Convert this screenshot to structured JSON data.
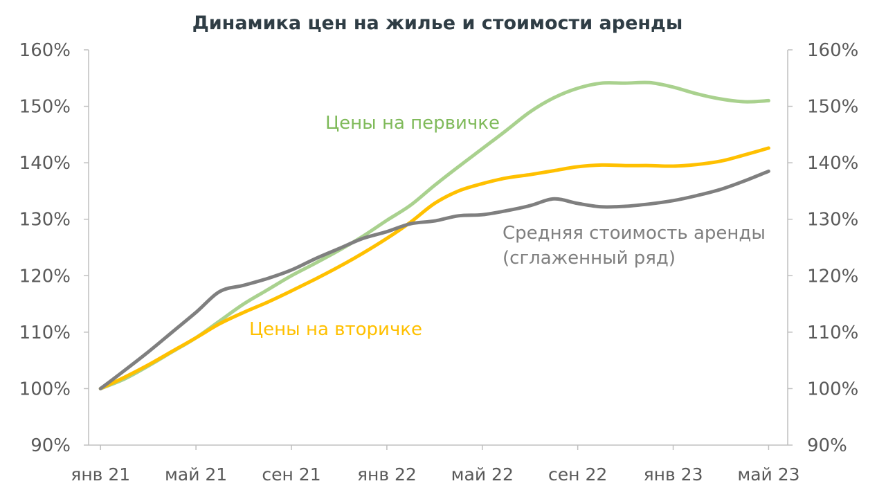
{
  "chart_data": {
    "type": "line",
    "title": "Динамика цен на жилье и стоимости аренды",
    "x_tick_labels": [
      "янв 21",
      "май 21",
      "сен 21",
      "янв 22",
      "май 22",
      "сен 22",
      "янв 23",
      "май 23"
    ],
    "x_tick_month_index": [
      0,
      4,
      8,
      12,
      16,
      20,
      24,
      28
    ],
    "x_range": [
      -0.5,
      28.8
    ],
    "y_tick_labels": [
      "90%",
      "100%",
      "110%",
      "120%",
      "130%",
      "140%",
      "150%",
      "160%"
    ],
    "y_tick_values": [
      90,
      100,
      110,
      120,
      130,
      140,
      150,
      160
    ],
    "ylim": [
      90,
      160
    ],
    "series": [
      {
        "name": "Цены на первичке",
        "color": "#a9d18e",
        "x": [
          0,
          1,
          2,
          3,
          4,
          5,
          6,
          7,
          8,
          9,
          10,
          11,
          12,
          13,
          14,
          15,
          16,
          17,
          18,
          19,
          20,
          21,
          22,
          23,
          24,
          25,
          26,
          27,
          28
        ],
        "values": [
          100,
          101.7,
          104,
          106.5,
          109,
          112,
          115,
          117.5,
          120,
          122.2,
          124.5,
          127,
          129.8,
          132.5,
          136,
          139.3,
          142.5,
          145.7,
          149,
          151.5,
          153.2,
          154.1,
          154.1,
          154.2,
          153.4,
          152.2,
          151.3,
          150.8,
          151
        ]
      },
      {
        "name": "Цены на вторичке",
        "color": "#ffc000",
        "x": [
          0,
          1,
          2,
          3,
          4,
          5,
          6,
          7,
          8,
          9,
          10,
          11,
          12,
          13,
          14,
          15,
          16,
          17,
          18,
          19,
          20,
          21,
          22,
          23,
          24,
          25,
          26,
          27,
          28
        ],
        "values": [
          100,
          102,
          104.2,
          106.6,
          109,
          111.5,
          113.5,
          115.3,
          117.3,
          119.4,
          121.6,
          124,
          126.6,
          129.5,
          132.8,
          135,
          136.3,
          137.3,
          137.9,
          138.6,
          139.3,
          139.6,
          139.5,
          139.5,
          139.4,
          139.7,
          140.3,
          141.4,
          142.6
        ]
      },
      {
        "name": "Средняя стоимость аренды (сглаженный ряд)",
        "color": "#7f7f7f",
        "x": [
          0,
          1,
          2,
          3,
          4,
          5,
          6,
          7,
          8,
          9,
          10,
          11,
          12,
          13,
          14,
          15,
          16,
          17,
          18,
          19,
          20,
          21,
          22,
          23,
          24,
          25,
          26,
          27,
          28
        ],
        "values": [
          100,
          103.2,
          106.5,
          110,
          113.5,
          117.2,
          118.3,
          119.5,
          121,
          123,
          124.8,
          126.6,
          127.8,
          129.2,
          129.7,
          130.6,
          130.8,
          131.5,
          132.4,
          133.6,
          132.8,
          132.2,
          132.3,
          132.7,
          133.3,
          134.2,
          135.3,
          136.8,
          138.5
        ]
      }
    ],
    "annotations": [
      {
        "text": "Цены на первичке",
        "series": 0
      },
      {
        "text": "Цены на вторичке",
        "series": 1
      },
      {
        "text": "Средняя стоимость аренды",
        "series": 2
      },
      {
        "text": "(сглаженный ряд)",
        "series": 2
      }
    ],
    "axes": {
      "left": true,
      "right": true,
      "grid": false
    }
  }
}
